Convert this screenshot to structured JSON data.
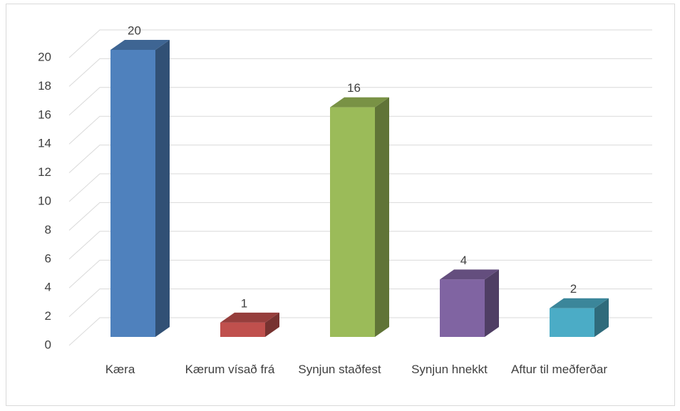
{
  "chart_data": {
    "type": "bar3d",
    "categories": [
      "Kæra",
      "Kærum vísað frá",
      "Synjun staðfest",
      "Synjun hnekkt",
      "Aftur til meðferðar"
    ],
    "values": [
      20,
      1,
      16,
      4,
      2
    ],
    "colors": [
      "#4f81bd",
      "#c0504d",
      "#9bbb59",
      "#8064a2",
      "#4bacc6"
    ],
    "ylim": [
      0,
      20
    ],
    "yticks": [
      0,
      2,
      4,
      6,
      8,
      10,
      12,
      14,
      16,
      18,
      20
    ],
    "grid": true
  }
}
